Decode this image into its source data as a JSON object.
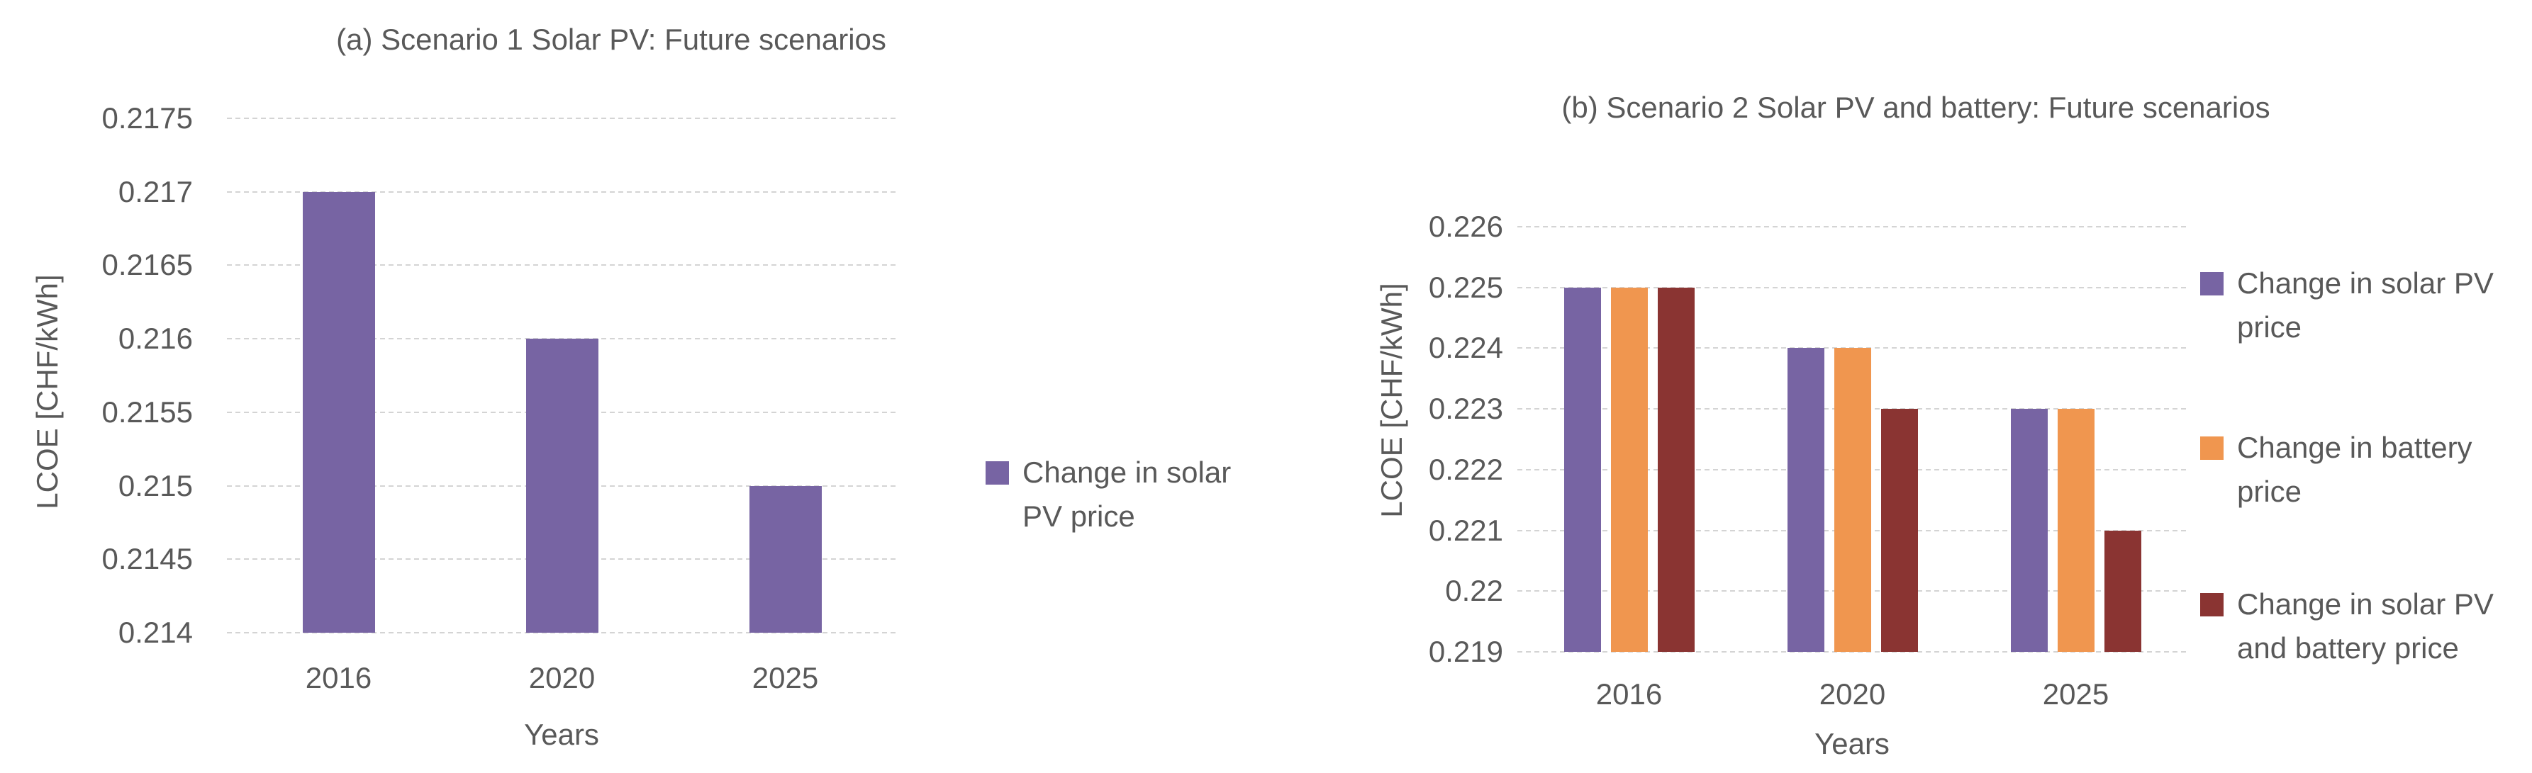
{
  "style": {
    "text_color": "#595959",
    "gridline_color": "#d4d4d4",
    "background": "#ffffff"
  },
  "chart_data": [
    {
      "type": "bar",
      "title": "(a) Scenario 1 Solar PV: Future scenarios",
      "xlabel": "Years",
      "ylabel": "LCOE [CHF/kWh]",
      "categories": [
        "2016",
        "2020",
        "2025"
      ],
      "series": [
        {
          "name": "Change in solar PV price",
          "color": "#7764a3",
          "values": [
            0.217,
            0.216,
            0.215
          ]
        }
      ],
      "ylim": [
        0.214,
        0.2175
      ],
      "ytick_labels": [
        "0.2175",
        "0.217",
        "0.2165",
        "0.216",
        "0.2155",
        "0.215",
        "0.2145",
        "0.214"
      ],
      "grid": true,
      "legend_position": "right"
    },
    {
      "type": "bar",
      "title": "(b) Scenario 2 Solar PV and battery: Future scenarios",
      "xlabel": "Years",
      "ylabel": "LCOE [CHF/kWh]",
      "categories": [
        "2016",
        "2020",
        "2025"
      ],
      "series": [
        {
          "name": "Change in solar PV price",
          "color": "#7764a3",
          "values": [
            0.225,
            0.224,
            0.223
          ]
        },
        {
          "name": "Change in battery price",
          "color": "#f0964f",
          "values": [
            0.225,
            0.224,
            0.223
          ]
        },
        {
          "name": "Change in solar PV and battery price",
          "color": "#8a3432",
          "values": [
            0.225,
            0.223,
            0.221
          ]
        }
      ],
      "ylim": [
        0.219,
        0.226
      ],
      "ytick_labels": [
        "0.226",
        "0.225",
        "0.224",
        "0.223",
        "0.222",
        "0.221",
        "0.22",
        "0.219"
      ],
      "grid": true,
      "legend_position": "right"
    }
  ]
}
